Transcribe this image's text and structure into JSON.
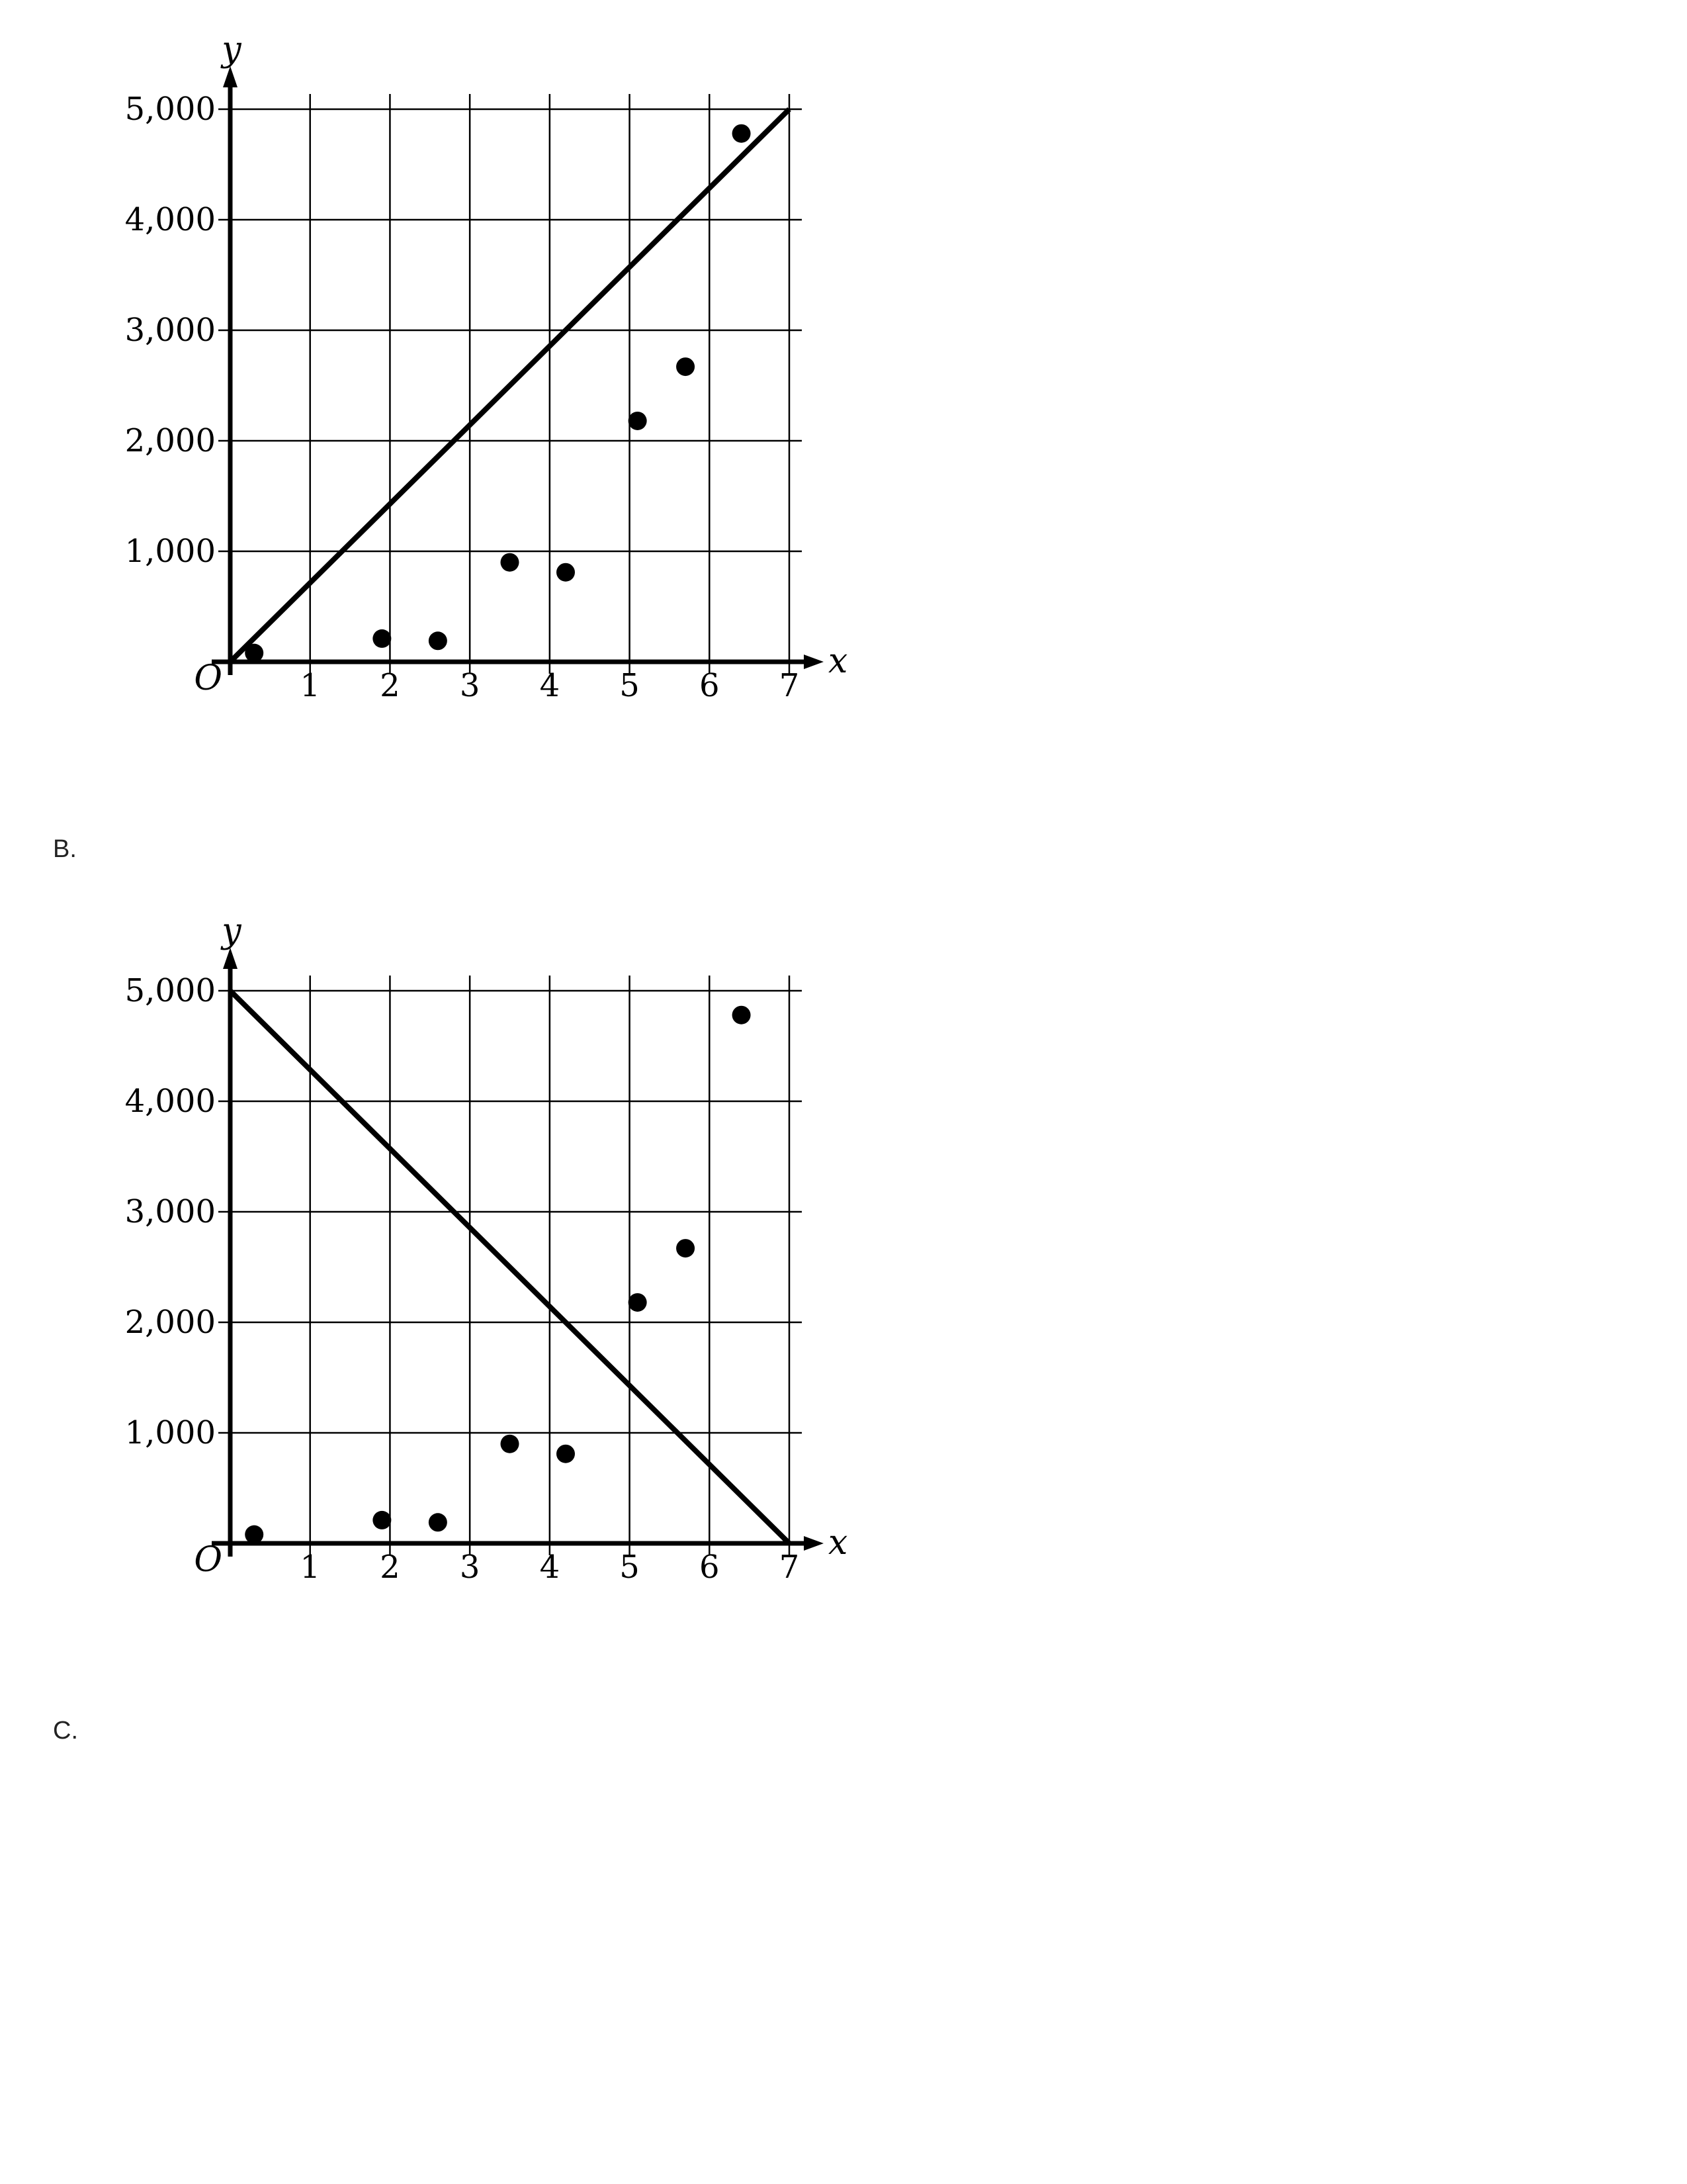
{
  "options": {
    "b_label": "B.",
    "c_label": "C."
  },
  "chart_data": [
    {
      "type": "scatter",
      "title": "",
      "xlabel": "x",
      "ylabel": "y",
      "origin_label": "O",
      "xlim": [
        0,
        7
      ],
      "ylim": [
        0,
        5000
      ],
      "x_ticks": [
        "1",
        "2",
        "3",
        "4",
        "5",
        "6",
        "7"
      ],
      "y_ticks": [
        "1,000",
        "2,000",
        "3,000",
        "4,000",
        "5,000"
      ],
      "grid": true,
      "points": [
        {
          "x": 0.3,
          "y": 80
        },
        {
          "x": 1.9,
          "y": 210
        },
        {
          "x": 2.6,
          "y": 190
        },
        {
          "x": 3.5,
          "y": 900
        },
        {
          "x": 4.2,
          "y": 810
        },
        {
          "x": 5.1,
          "y": 2180
        },
        {
          "x": 5.7,
          "y": 2670
        },
        {
          "x": 6.4,
          "y": 4780
        }
      ],
      "line": {
        "x1": 0,
        "y1": 0,
        "x2": 7,
        "y2": 5000
      }
    },
    {
      "type": "scatter",
      "title": "",
      "xlabel": "x",
      "ylabel": "y",
      "origin_label": "O",
      "xlim": [
        0,
        7
      ],
      "ylim": [
        0,
        5000
      ],
      "x_ticks": [
        "1",
        "2",
        "3",
        "4",
        "5",
        "6",
        "7"
      ],
      "y_ticks": [
        "1,000",
        "2,000",
        "3,000",
        "4,000",
        "5,000"
      ],
      "grid": true,
      "points": [
        {
          "x": 0.3,
          "y": 80
        },
        {
          "x": 1.9,
          "y": 210
        },
        {
          "x": 2.6,
          "y": 190
        },
        {
          "x": 3.5,
          "y": 900
        },
        {
          "x": 4.2,
          "y": 810
        },
        {
          "x": 5.1,
          "y": 2180
        },
        {
          "x": 5.7,
          "y": 2670
        },
        {
          "x": 6.4,
          "y": 4780
        }
      ],
      "line": {
        "x1": 0,
        "y1": 5000,
        "x2": 7,
        "y2": 0
      }
    }
  ]
}
